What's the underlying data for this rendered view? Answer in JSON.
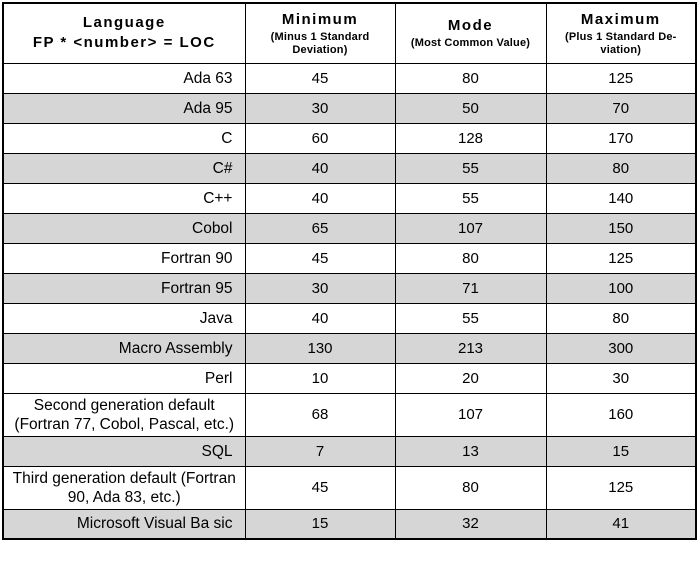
{
  "colors": {
    "row_shade": "#d6d6d6",
    "border": "#000000",
    "background": "#ffffff"
  },
  "header": {
    "language_title": "Language",
    "language_subtitle": "FP * <number> = LOC",
    "columns": [
      {
        "title": "Minimum",
        "subtitle": "(Minus 1 Standard Deviation)"
      },
      {
        "title": "Mode",
        "subtitle": "(Most Common Value)"
      },
      {
        "title": "Maximum",
        "subtitle": "(Plus 1 Standard De-viation)"
      }
    ]
  },
  "chart_data": {
    "type": "table",
    "columns": [
      "Language FP * <number> = LOC",
      "Minimum (Minus 1 Standard Deviation)",
      "Mode (Most Common Value)",
      "Maximum (Plus 1 Standard Deviation)"
    ],
    "rows": [
      [
        "Ada 63",
        45,
        80,
        125
      ],
      [
        "Ada 95",
        30,
        50,
        70
      ],
      [
        "C",
        60,
        128,
        170
      ],
      [
        "C#",
        40,
        55,
        80
      ],
      [
        "C++",
        40,
        55,
        140
      ],
      [
        "Cobol",
        65,
        107,
        150
      ],
      [
        "Fortran 90",
        45,
        80,
        125
      ],
      [
        "Fortran 95",
        30,
        71,
        100
      ],
      [
        "Java",
        40,
        55,
        80
      ],
      [
        "Macro Assembly",
        130,
        213,
        300
      ],
      [
        "Perl",
        10,
        20,
        30
      ],
      [
        "Second generation default (Fortran 77, Cobol, Pascal, etc.)",
        68,
        107,
        160
      ],
      [
        "SQL",
        7,
        13,
        15
      ],
      [
        "Third generation default (Fortran 90, Ada 83, etc.)",
        45,
        80,
        125
      ],
      [
        "Microsoft Visual Ba sic",
        15,
        32,
        41
      ]
    ]
  },
  "presentation": {
    "shaded_rows": [
      1,
      3,
      5,
      7,
      9,
      12,
      14
    ],
    "center_rows": [
      11,
      13
    ]
  }
}
